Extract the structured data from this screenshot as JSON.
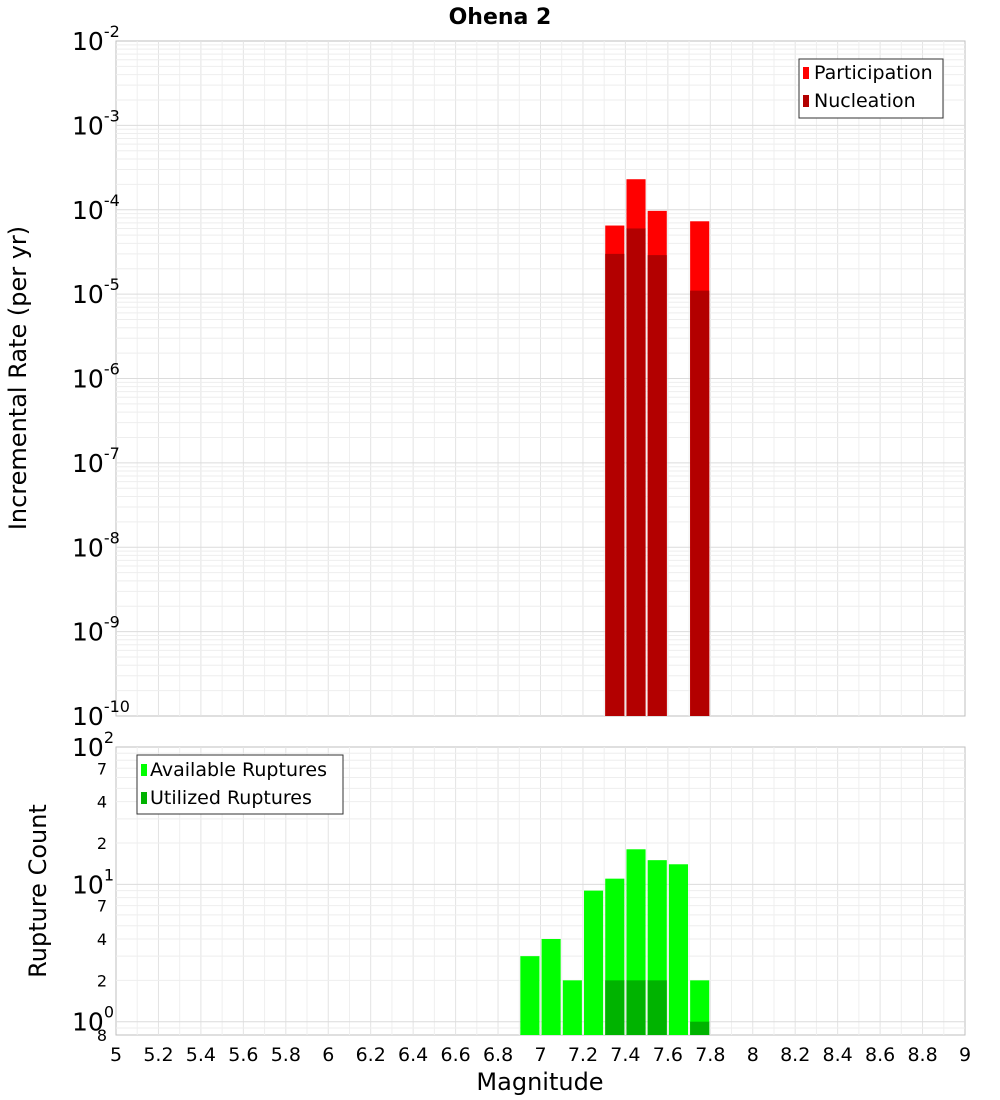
{
  "chart_data": [
    {
      "type": "bar",
      "title": "Ohena 2",
      "ylabel": "Incremental Rate (per yr)",
      "yscale": "log",
      "ylim": [
        1e-10,
        0.01
      ],
      "xlim": [
        5,
        9
      ],
      "bar_width": 0.09,
      "y_ticks": [
        {
          "value": 1e-10,
          "base": "10",
          "exp": "-10"
        },
        {
          "value": 1e-09,
          "base": "10",
          "exp": "-9"
        },
        {
          "value": 1e-08,
          "base": "10",
          "exp": "-8"
        },
        {
          "value": 1e-07,
          "base": "10",
          "exp": "-7"
        },
        {
          "value": 1e-06,
          "base": "10",
          "exp": "-6"
        },
        {
          "value": 1e-05,
          "base": "10",
          "exp": "-5"
        },
        {
          "value": 0.0001,
          "base": "10",
          "exp": "-4"
        },
        {
          "value": 0.001,
          "base": "10",
          "exp": "-3"
        },
        {
          "value": 0.01,
          "base": "10",
          "exp": "-2"
        }
      ],
      "legend_position": "top-right",
      "series": [
        {
          "name": "Participation",
          "color": "#ff0000",
          "x": [
            7.35,
            7.45,
            7.55,
            7.75
          ],
          "values": [
            6.5e-05,
            0.00023,
            9.7e-05,
            7.3e-05
          ]
        },
        {
          "name": "Nucleation",
          "color": "#b30000",
          "x": [
            7.35,
            7.45,
            7.55,
            7.75
          ],
          "values": [
            3e-05,
            6e-05,
            2.9e-05,
            1.1e-05
          ]
        }
      ]
    },
    {
      "type": "bar",
      "ylabel": "Rupture Count",
      "xlabel": "Magnitude",
      "yscale": "log",
      "ylim": [
        0.8,
        100
      ],
      "xlim": [
        5,
        9
      ],
      "bar_width": 0.09,
      "y_ticks": [
        {
          "value": 1,
          "base": "10",
          "exp": "0"
        },
        {
          "value": 10,
          "base": "10",
          "exp": "1"
        },
        {
          "value": 100,
          "base": "10",
          "exp": "2"
        }
      ],
      "y_minor_labels": [
        {
          "value": 0.8,
          "label": "8"
        },
        {
          "value": 2,
          "label": "2"
        },
        {
          "value": 4,
          "label": "4"
        },
        {
          "value": 7,
          "label": "7"
        },
        {
          "value": 20,
          "label": "2"
        },
        {
          "value": 40,
          "label": "4"
        },
        {
          "value": 70,
          "label": "7"
        }
      ],
      "x_ticks": [
        "5",
        "5.2",
        "5.4",
        "5.6",
        "5.8",
        "6",
        "6.2",
        "6.4",
        "6.6",
        "6.8",
        "7",
        "7.2",
        "7.4",
        "7.6",
        "7.8",
        "8",
        "8.2",
        "8.4",
        "8.6",
        "8.8",
        "9"
      ],
      "legend_position": "top-left",
      "series": [
        {
          "name": "Available Ruptures",
          "color": "#00ff00",
          "x": [
            6.95,
            7.05,
            7.15,
            7.25,
            7.35,
            7.45,
            7.55,
            7.65,
            7.75
          ],
          "values": [
            3,
            4,
            2,
            9,
            11,
            18,
            15,
            14,
            2
          ]
        },
        {
          "name": "Utilized Ruptures",
          "color": "#00b300",
          "x": [
            7.35,
            7.45,
            7.55,
            7.75
          ],
          "values": [
            2,
            2,
            2,
            1
          ]
        }
      ]
    }
  ]
}
